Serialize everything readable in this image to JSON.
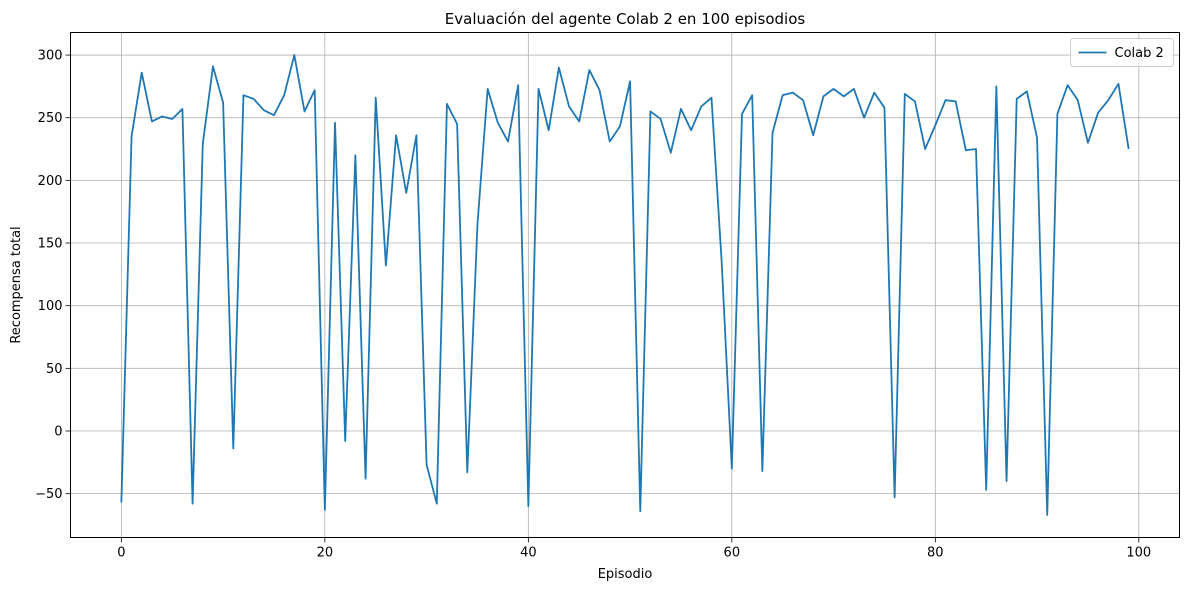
{
  "chart_data": {
    "type": "line",
    "title": "Evaluación del agente Colab 2 en 100 episodios",
    "xlabel": "Episodio",
    "ylabel": "Recompensa total",
    "xlim": [
      -5,
      104
    ],
    "ylim": [
      -85,
      318
    ],
    "xticks": [
      0,
      20,
      40,
      60,
      80,
      100
    ],
    "yticks": [
      -50,
      0,
      50,
      100,
      150,
      200,
      250,
      300
    ],
    "grid": true,
    "legend_position": "top-right",
    "series": [
      {
        "name": "Colab 2",
        "color": "#1f77b4",
        "x": [
          0,
          1,
          2,
          3,
          4,
          5,
          6,
          7,
          8,
          9,
          10,
          11,
          12,
          13,
          14,
          15,
          16,
          17,
          18,
          19,
          20,
          21,
          22,
          23,
          24,
          25,
          26,
          27,
          28,
          29,
          30,
          31,
          32,
          33,
          34,
          35,
          36,
          37,
          38,
          39,
          40,
          41,
          42,
          43,
          44,
          45,
          46,
          47,
          48,
          49,
          50,
          51,
          52,
          53,
          54,
          55,
          56,
          57,
          58,
          59,
          60,
          61,
          62,
          63,
          64,
          65,
          66,
          67,
          68,
          69,
          70,
          71,
          72,
          73,
          74,
          75,
          76,
          77,
          78,
          79,
          80,
          81,
          82,
          83,
          84,
          85,
          86,
          87,
          88,
          89,
          90,
          91,
          92,
          93,
          94,
          95,
          96,
          97,
          98,
          99
        ],
        "values": [
          -57,
          235,
          286,
          247,
          251,
          249,
          257,
          -58,
          229,
          291,
          262,
          -14,
          268,
          265,
          256,
          252,
          268,
          300,
          255,
          272,
          -63,
          246,
          -8,
          220,
          -38,
          266,
          132,
          236,
          190,
          236,
          -27,
          -58,
          261,
          245,
          -33,
          165,
          273,
          246,
          231,
          276,
          -60,
          273,
          240,
          290,
          259,
          247,
          288,
          272,
          231,
          243,
          279,
          -64,
          255,
          249,
          222,
          257,
          240,
          259,
          266,
          135,
          -30,
          253,
          268,
          -32,
          238,
          268,
          270,
          264,
          236,
          267,
          273,
          267,
          273,
          250,
          270,
          258,
          -53,
          269,
          263,
          225,
          244,
          264,
          263,
          224,
          225,
          -47,
          275,
          -40,
          265,
          271,
          234,
          -67,
          253,
          276,
          264,
          230,
          254,
          264,
          277,
          225
        ]
      }
    ]
  }
}
